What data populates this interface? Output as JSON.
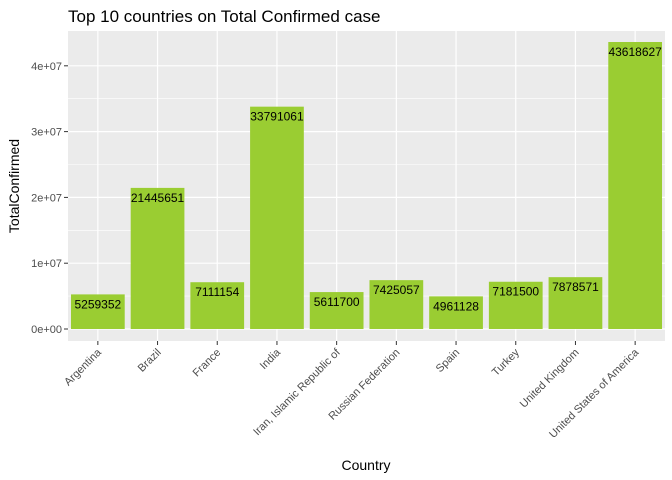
{
  "chart_data": {
    "type": "bar",
    "title": "Top 10 countries on Total Confirmed case",
    "xlabel": "Country",
    "ylabel": "TotalConfirmed",
    "categories": [
      "Argentina",
      "Brazil",
      "France",
      "India",
      "Iran, Islamic Republic of",
      "Russian Federation",
      "Spain",
      "Turkey",
      "United Kingdom",
      "United States of America"
    ],
    "values": [
      5259352,
      21445651,
      7111154,
      33791061,
      5611700,
      7425057,
      4961128,
      7181500,
      7878571,
      43618627
    ],
    "ylim": [
      0,
      45000000
    ],
    "yticks": [
      0,
      10000000,
      20000000,
      30000000,
      40000000
    ],
    "ytick_labels": [
      "0e+00",
      "1e+07",
      "2e+07",
      "3e+07",
      "4e+07"
    ],
    "grid": true,
    "bar_color": "#9ACD32",
    "panel_color": "#EBEBEB",
    "grid_color": "#FFFFFF"
  }
}
